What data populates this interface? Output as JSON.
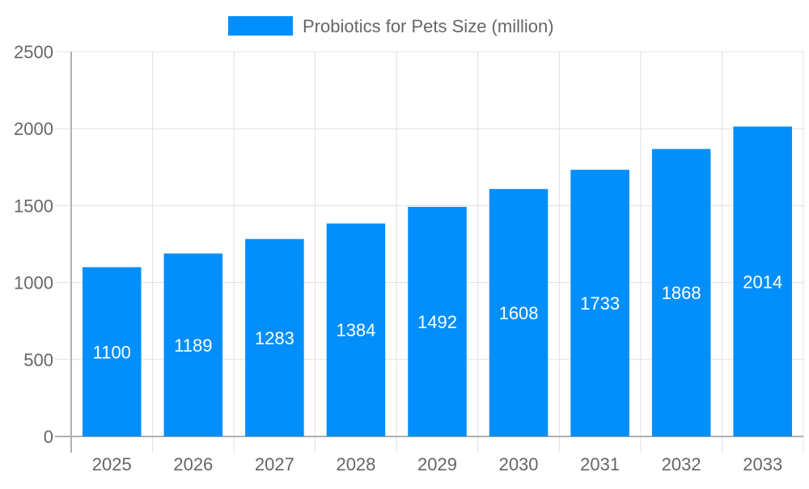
{
  "chart_data": {
    "type": "bar",
    "categories": [
      "2025",
      "2026",
      "2027",
      "2028",
      "2029",
      "2030",
      "2031",
      "2032",
      "2033"
    ],
    "series": [
      {
        "name": "Probiotics for Pets Size (million)",
        "values": [
          1100,
          1189,
          1283,
          1384,
          1492,
          1608,
          1733,
          1868,
          2014
        ]
      }
    ],
    "ylim": [
      0,
      2500
    ],
    "yticks": [
      0,
      500,
      1000,
      1500,
      2000,
      2500
    ],
    "grid": true,
    "legend_position": "top",
    "data_labels": true,
    "colors": {
      "bar": "#038ffb",
      "label": "#ffffff",
      "axis_text": "#666666",
      "grid": "#e0e0e0",
      "axis": "#b0b0b0"
    }
  }
}
